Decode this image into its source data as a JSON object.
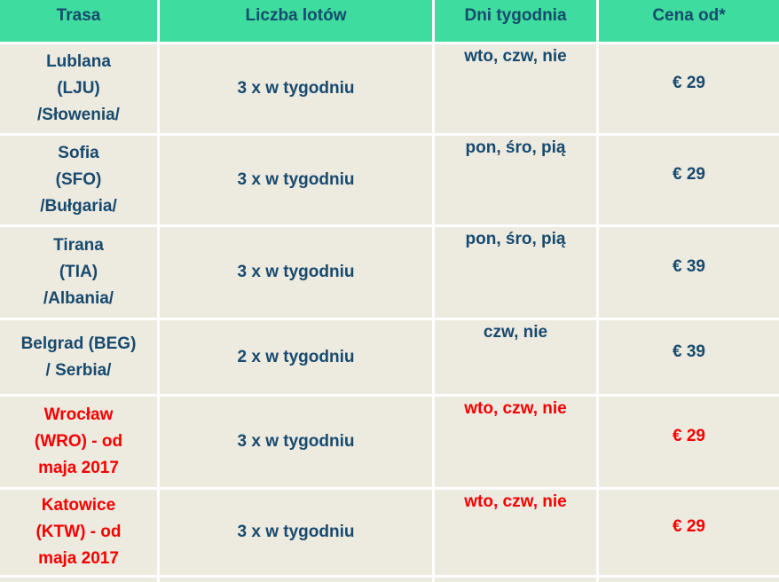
{
  "table": {
    "columns": [
      "Trasa",
      "Liczba lotów",
      "Dni tygodnia",
      "Cena od*"
    ],
    "rows": [
      {
        "route": "Lublana\n(LJU)\n/Słowenia/",
        "frequency": "3 x w tygodniu",
        "days": "wto, czw, nie",
        "price": "€ 29",
        "highlighted": false
      },
      {
        "route": "Sofia\n(SFO)\n/Bułgaria/",
        "frequency": "3 x w tygodniu",
        "days": "pon, śro, pią",
        "price": "€ 29",
        "highlighted": false
      },
      {
        "route": "Tirana\n(TIA)\n/Albania/",
        "frequency": "3 x w tygodniu",
        "days": "pon, śro, pią",
        "price": "€ 39",
        "highlighted": false
      },
      {
        "route": "Belgrad (BEG)\n/ Serbia/",
        "frequency": "2 x w tygodniu",
        "days": "czw, nie",
        "price": "€ 39",
        "highlighted": false
      },
      {
        "route": "Wrocław\n(WRO) - od\nmaja 2017",
        "frequency": "3 x w tygodniu",
        "days": "wto, czw, nie",
        "price": "€ 29",
        "highlighted": true
      },
      {
        "route": "Katowice\n(KTW) - od\nmaja 2017",
        "frequency": "3 x w tygodniu",
        "days": "wto, czw, nie",
        "price": "€ 29",
        "highlighted": true
      }
    ],
    "colors": {
      "header_bg": "#3EDC9E",
      "cell_bg": "#EDEAE0",
      "text_primary": "#174A6E",
      "text_highlight": "#F90000",
      "divider": "#FFFFFF"
    }
  }
}
